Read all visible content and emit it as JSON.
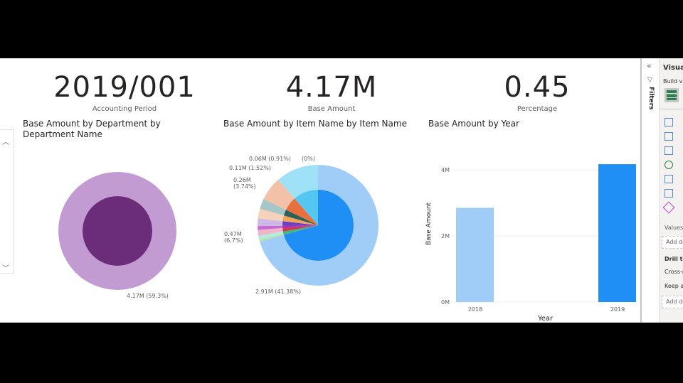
{
  "cards": [
    {
      "value": "2019/001",
      "caption": "Accounting Period"
    },
    {
      "value": "4.17M",
      "caption": "Base Amount"
    },
    {
      "value": "0.45",
      "caption": "Percentage"
    }
  ],
  "chart_data": [
    {
      "type": "pie",
      "title": "Base Amount by Department by Department Name",
      "labels": [
        "4.17M (59.3%)"
      ],
      "outer": [
        {
          "value": 59.3,
          "color": "#c39bd3"
        }
      ],
      "inner": [
        {
          "value": 100,
          "color": "#6b2c7a"
        }
      ]
    },
    {
      "type": "pie",
      "title": "Base Amount by Item Name by Item Name",
      "labels": [
        "2.91M (41.38%)",
        "0.47M (6.7%)",
        "0.26M (3.74%)",
        "0.11M (1.52%)",
        "0.06M (0.91%)",
        "(0%)"
      ],
      "outer": [
        {
          "value": 41.38,
          "color": "#a0cdf7"
        },
        {
          "value": 6.7,
          "color": "#9fe2f8"
        },
        {
          "value": 3.74,
          "color": "#f3c0a8"
        },
        {
          "value": 1.6,
          "color": "#a7c6c8"
        },
        {
          "value": 1.52,
          "color": "#f6d3b8"
        },
        {
          "value": 1.2,
          "color": "#cdb8e6"
        },
        {
          "value": 0.6,
          "color": "#c86ad4"
        },
        {
          "value": 0.91,
          "color": "#f0b5c8"
        },
        {
          "value": 0.6,
          "color": "#b4eadf"
        },
        {
          "value": 0.3,
          "color": "#b5e3a5"
        }
      ],
      "inner": [
        {
          "value": 41.38,
          "color": "#1f8ff5"
        },
        {
          "value": 6.7,
          "color": "#53c6f2"
        },
        {
          "value": 3.74,
          "color": "#e8703c"
        },
        {
          "value": 1.6,
          "color": "#2d5f5b"
        },
        {
          "value": 1.52,
          "color": "#f0a35a"
        },
        {
          "value": 1.2,
          "color": "#6a3fc2"
        },
        {
          "value": 0.6,
          "color": "#a033b7"
        },
        {
          "value": 0.91,
          "color": "#d8344a"
        },
        {
          "value": 0.6,
          "color": "#2cb58e"
        },
        {
          "value": 0.3,
          "color": "#5fb34a"
        }
      ]
    },
    {
      "type": "bar",
      "title": "Base Amount by Year",
      "xlabel": "Year",
      "ylabel": "Base Amount",
      "categories": [
        "2018",
        "2019"
      ],
      "values": [
        2.85,
        4.17
      ],
      "colors": [
        "#a0cdf7",
        "#1f8ff5"
      ],
      "yticks": [
        "0M",
        "2M",
        "4M"
      ],
      "ylim": [
        0,
        4.4
      ]
    }
  ],
  "pane": {
    "filters": "Filters",
    "visualizations": "Visualizations",
    "build": "Build visual",
    "values": "Values",
    "add_data": "Add data fields here",
    "drill": "Drill through",
    "cross": "Cross-report",
    "keep": "Keep all filters",
    "add_drill": "Add drill-through fields here"
  }
}
